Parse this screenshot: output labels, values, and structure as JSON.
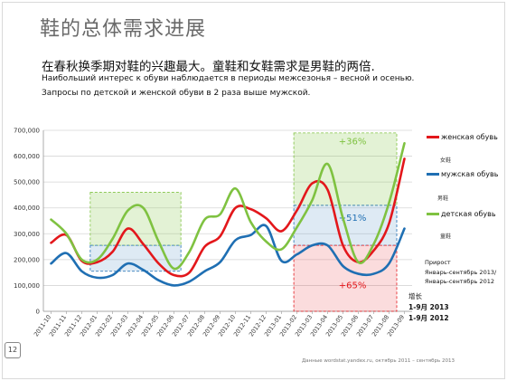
{
  "page": {
    "title": "鞋的总体需求进展",
    "subtitle_cn": "在春秋换季期对鞋的兴趣最大。童鞋和女鞋需求是男鞋的两倍.",
    "subtitle_ru_1": "Наибольший интерес к обуви наблюдается в периоды межсезонья – весной и осенью.",
    "subtitle_ru_2": "Запросы по детской и женской обуви в 2 раза выше мужской.",
    "page_number": "12",
    "source": "Данные wordstat.yandex.ru, октябрь 2011 – сентябрь 2013"
  },
  "legend": {
    "women": "женская обувь",
    "women_cn": "女鞋",
    "men": "мужская обувь",
    "men_cn": "男鞋",
    "kids": "детская обувь",
    "kids_cn": "童鞋"
  },
  "notes": {
    "growth_ru": "Прирост",
    "period_ru_1": "Январь-сентябрь 2013/",
    "period_ru_2": "Январь-сентябрь 2012",
    "growth_cn": "增长",
    "period_cn_1": "1-9月 2013",
    "period_cn_2": "1-9月 2012"
  },
  "colors": {
    "women": "#e3171b",
    "men": "#1f6fb3",
    "kids": "#7fc241",
    "grid": "#d6d6d6"
  },
  "chart_data": {
    "type": "line",
    "x": [
      "2011-10",
      "2011-11",
      "2011-12",
      "2012-01",
      "2012-02",
      "2012-03",
      "2012-04",
      "2012-05",
      "2012-06",
      "2012-07",
      "2012-08",
      "2012-09",
      "2012-10",
      "2012-11",
      "2012-12",
      "2013-01",
      "2013-02",
      "2013-03",
      "2013-04",
      "2013-05",
      "2013-06",
      "2013-07",
      "2013-08",
      "2013-09"
    ],
    "ylim": [
      0,
      700000
    ],
    "yticks": [
      "0",
      "100,000",
      "200,000",
      "300,000",
      "400,000",
      "500,000",
      "600,000",
      "700,000"
    ],
    "grid": true,
    "series": [
      {
        "name": "женская обувь",
        "values": [
          265000,
          295000,
          195000,
          190000,
          230000,
          320000,
          260000,
          185000,
          140000,
          150000,
          250000,
          290000,
          400000,
          395000,
          360000,
          310000,
          390000,
          495000,
          470000,
          255000,
          190000,
          235000,
          340000,
          590000
        ]
      },
      {
        "name": "мужская обувь",
        "values": [
          185000,
          225000,
          155000,
          130000,
          140000,
          185000,
          160000,
          120000,
          100000,
          115000,
          155000,
          190000,
          275000,
          295000,
          330000,
          195000,
          220000,
          255000,
          255000,
          175000,
          145000,
          145000,
          185000,
          320000
        ]
      },
      {
        "name": "детская обувь",
        "values": [
          355000,
          300000,
          200000,
          200000,
          280000,
          390000,
          400000,
          270000,
          165000,
          230000,
          355000,
          375000,
          475000,
          345000,
          270000,
          240000,
          325000,
          430000,
          570000,
          360000,
          190000,
          260000,
          420000,
          650000
        ]
      }
    ],
    "annotations": [
      "+36%",
      "+51%",
      "+65%"
    ]
  }
}
